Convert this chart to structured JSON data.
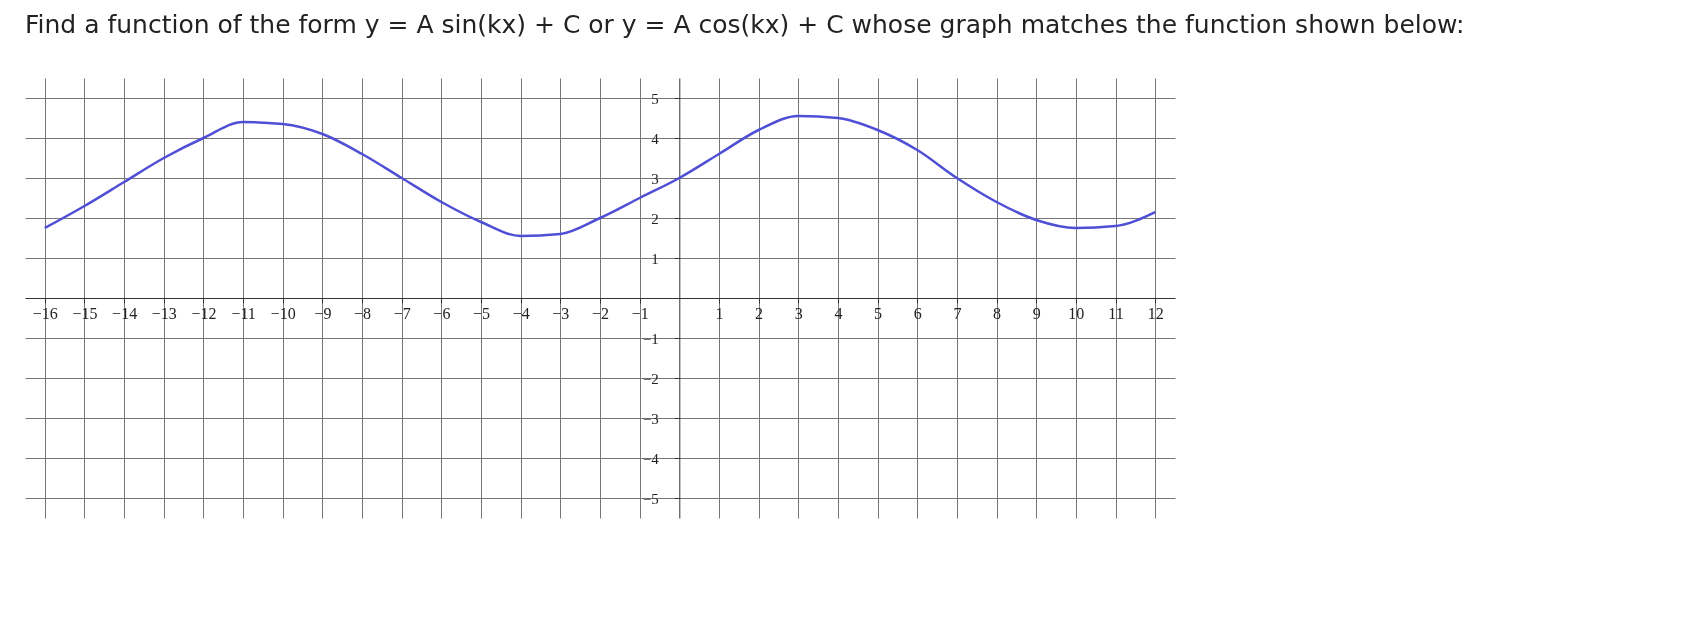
{
  "chart_data": {
    "type": "line",
    "title": "Find a function of the form y = A sin(kx) + C or y = A cos(kx) + C whose graph matches the function shown below:",
    "x": [
      -16,
      -15,
      -14,
      -13,
      -12,
      -11,
      -10,
      -9,
      -8,
      -7,
      -6,
      -5,
      -4,
      -3,
      -2,
      -1,
      0,
      1,
      2,
      3,
      4,
      5,
      6,
      7,
      8,
      9,
      10,
      11,
      12
    ],
    "series": [
      {
        "color": "#4f4fd6",
        "values": [
          1.75,
          2.3,
          2.9,
          3.5,
          4.0,
          4.4,
          4.35,
          4.1,
          3.6,
          3.0,
          2.4,
          1.9,
          1.55,
          1.6,
          2.0,
          2.5,
          3.0,
          3.6,
          4.2,
          4.55,
          4.5,
          4.2,
          3.7,
          3.0,
          2.4,
          1.95,
          1.75,
          1.8,
          2.15
        ]
      }
    ],
    "xlim": [
      -16.5,
      12.5
    ],
    "ylim": [
      -5.5,
      5.5
    ],
    "xticks": [
      -16,
      -15,
      -14,
      -13,
      -12,
      -11,
      -10,
      -9,
      -8,
      -7,
      -6,
      -5,
      -4,
      -3,
      -2,
      -1,
      1,
      2,
      3,
      4,
      5,
      6,
      7,
      8,
      9,
      10,
      11,
      12
    ],
    "yticks": [
      -5,
      -4,
      -3,
      -2,
      -1,
      1,
      2,
      3,
      4,
      5
    ],
    "grid": true,
    "marker": "none",
    "line_style": "solid"
  }
}
